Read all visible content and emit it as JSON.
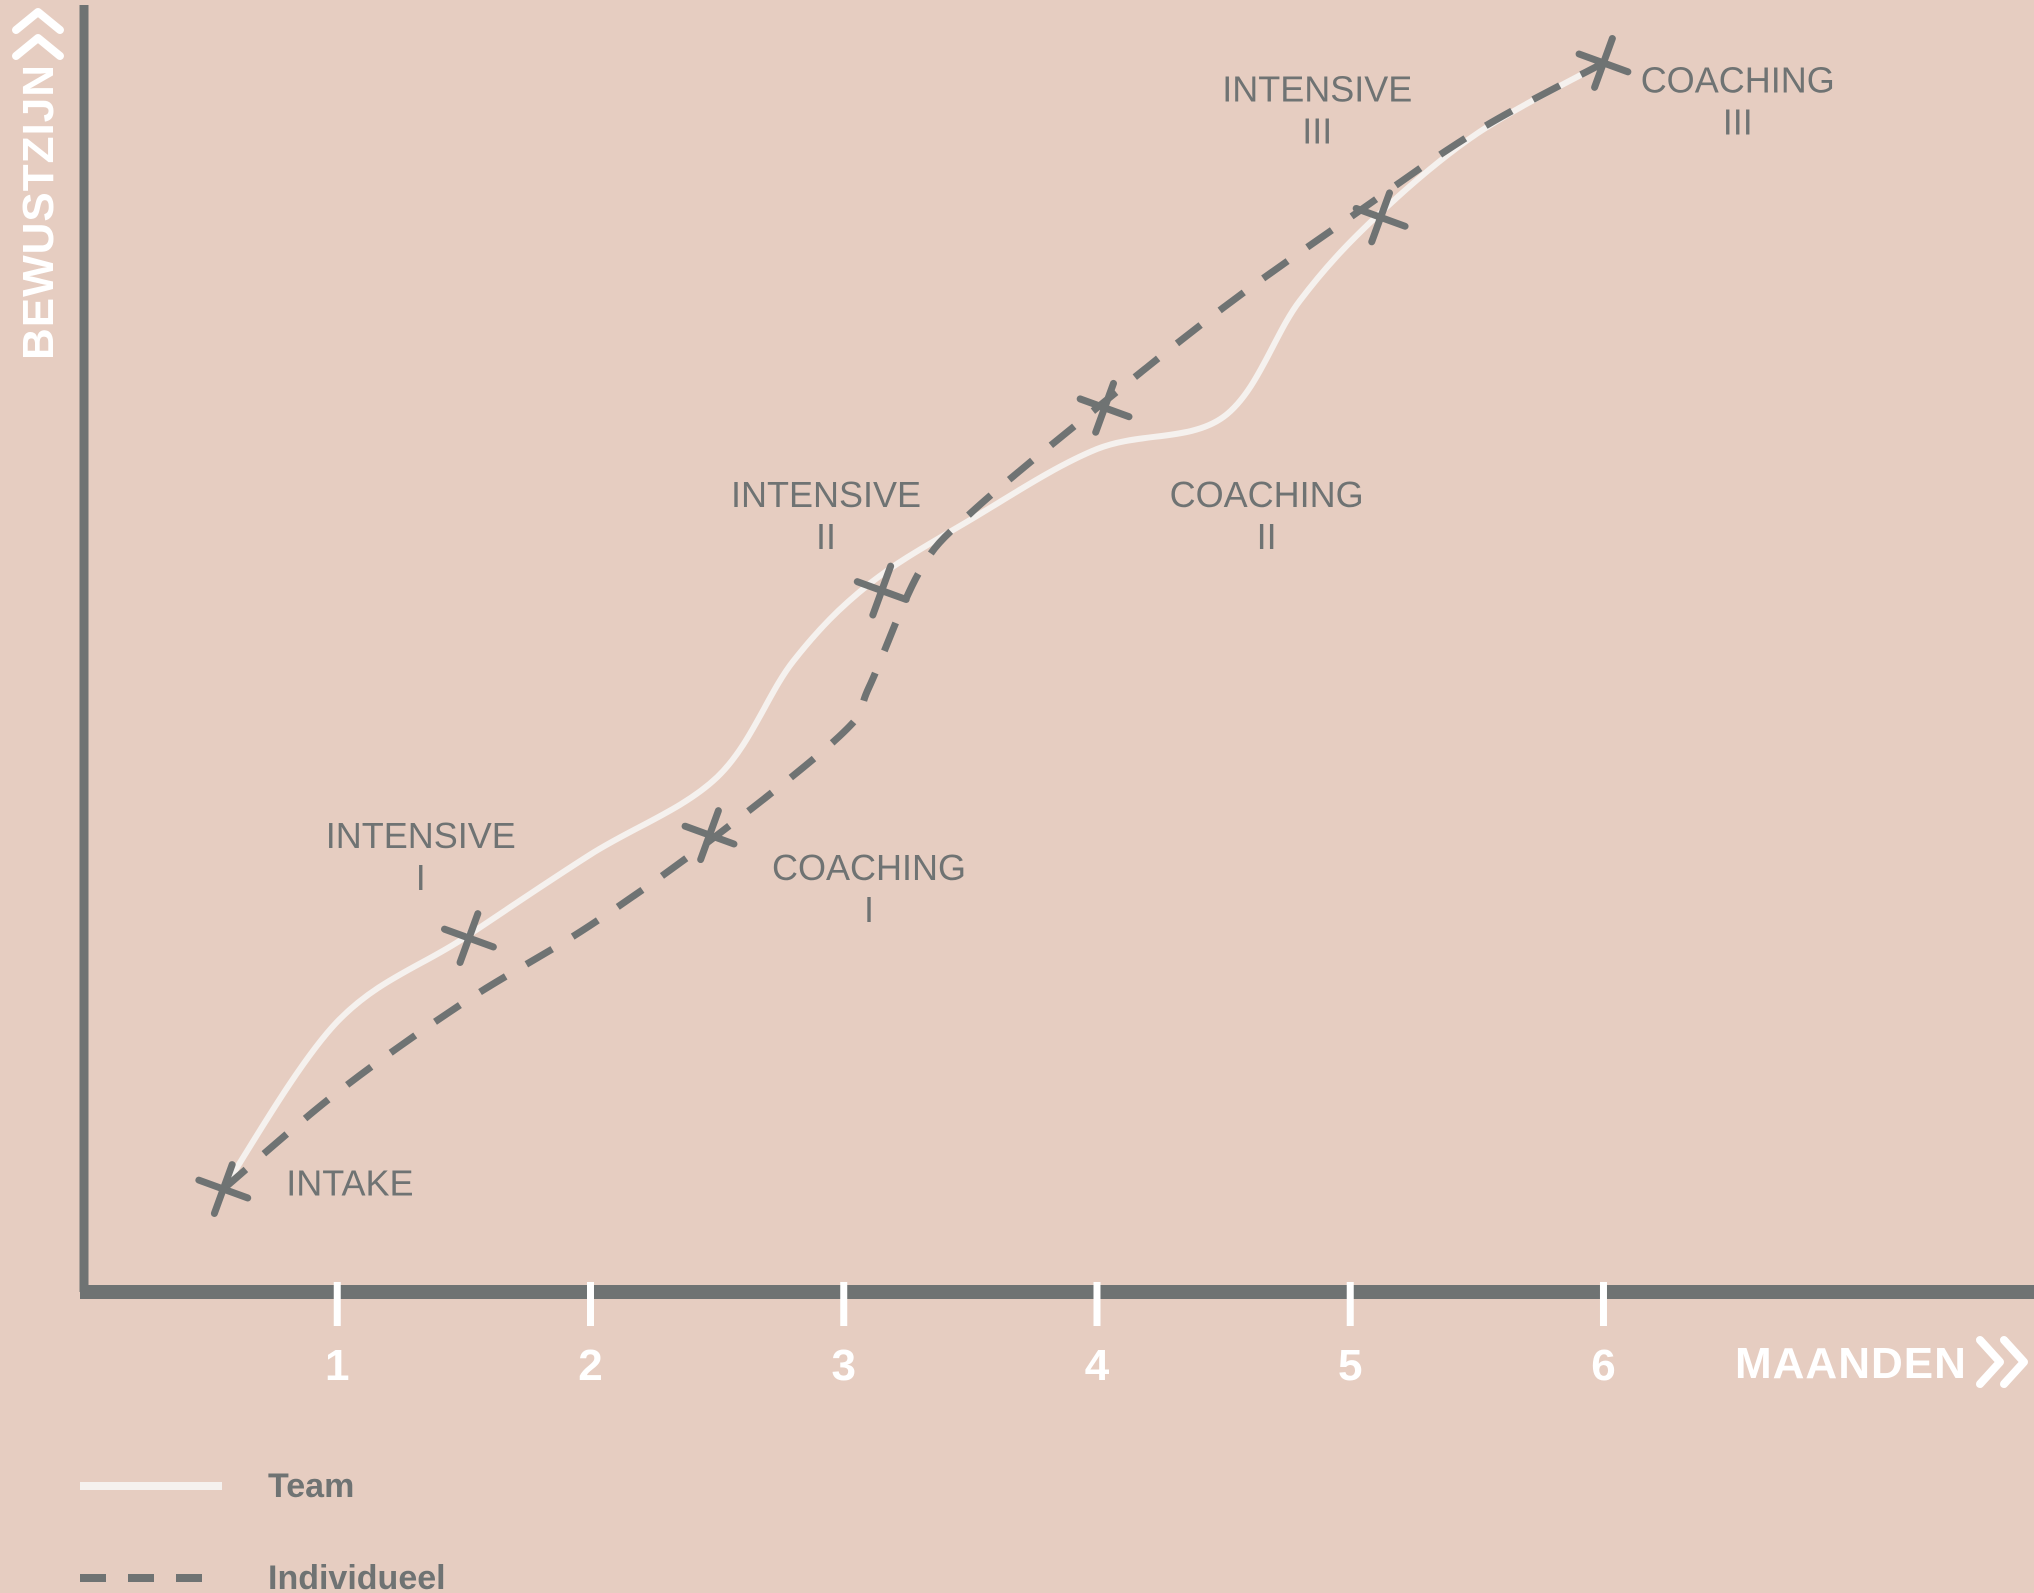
{
  "chart_data": {
    "type": "line",
    "title": "",
    "xlabel": "MAANDEN",
    "ylabel": "BEWUSTZIJN",
    "x_ticks": [
      "1",
      "2",
      "3",
      "4",
      "5",
      "6"
    ],
    "xlim": [
      0,
      7.7
    ],
    "ylim": [
      0,
      10
    ],
    "grid": false,
    "legend_position": "bottom-left",
    "colors": {
      "background": "#e6cdc1",
      "axis": "#6f7373",
      "team": "#f5f1ee",
      "individueel": "#6f7373",
      "tick": "#ffffff"
    },
    "series": [
      {
        "name": "Team",
        "style": "solid",
        "x": [
          0.55,
          1.0,
          1.5,
          2.0,
          2.5,
          2.8,
          3.1,
          3.5,
          4.0,
          4.5,
          4.8,
          5.1,
          5.5,
          6.0
        ],
        "y": [
          0.8,
          2.1,
          2.75,
          3.4,
          4.0,
          4.9,
          5.5,
          6.0,
          6.55,
          6.8,
          7.7,
          8.35,
          9.0,
          9.55
        ]
      },
      {
        "name": "Individueel",
        "style": "dashed",
        "x": [
          0.55,
          1.0,
          1.5,
          2.0,
          2.5,
          3.0,
          3.1,
          3.3,
          3.5,
          4.0,
          4.5,
          5.0,
          5.5,
          6.0
        ],
        "y": [
          0.8,
          1.55,
          2.25,
          2.85,
          3.55,
          4.35,
          4.7,
          5.6,
          6.05,
          6.87,
          7.65,
          8.35,
          9.02,
          9.55
        ]
      }
    ],
    "markers": [
      {
        "x": 0.55,
        "y": 0.8
      },
      {
        "x": 1.52,
        "y": 2.75
      },
      {
        "x": 2.47,
        "y": 3.55
      },
      {
        "x": 3.15,
        "y": 5.45
      },
      {
        "x": 4.03,
        "y": 6.87
      },
      {
        "x": 5.12,
        "y": 8.35
      },
      {
        "x": 6.0,
        "y": 9.55
      }
    ],
    "annotations": [
      {
        "line1": "INTAKE",
        "line2": "",
        "x": 1.05,
        "y": 0.75
      },
      {
        "line1": "INTENSIVE",
        "line2": "I",
        "x": 1.33,
        "y": 3.45
      },
      {
        "line1": "COACHING",
        "line2": "I",
        "x": 3.1,
        "y": 3.2
      },
      {
        "line1": "INTENSIVE",
        "line2": "II",
        "x": 2.93,
        "y": 6.1
      },
      {
        "line1": "COACHING",
        "line2": "II",
        "x": 4.67,
        "y": 6.1
      },
      {
        "line1": "INTENSIVE",
        "line2": "III",
        "x": 4.87,
        "y": 9.25
      },
      {
        "line1": "COACHING",
        "line2": "III",
        "x": 6.53,
        "y": 9.32
      }
    ]
  }
}
